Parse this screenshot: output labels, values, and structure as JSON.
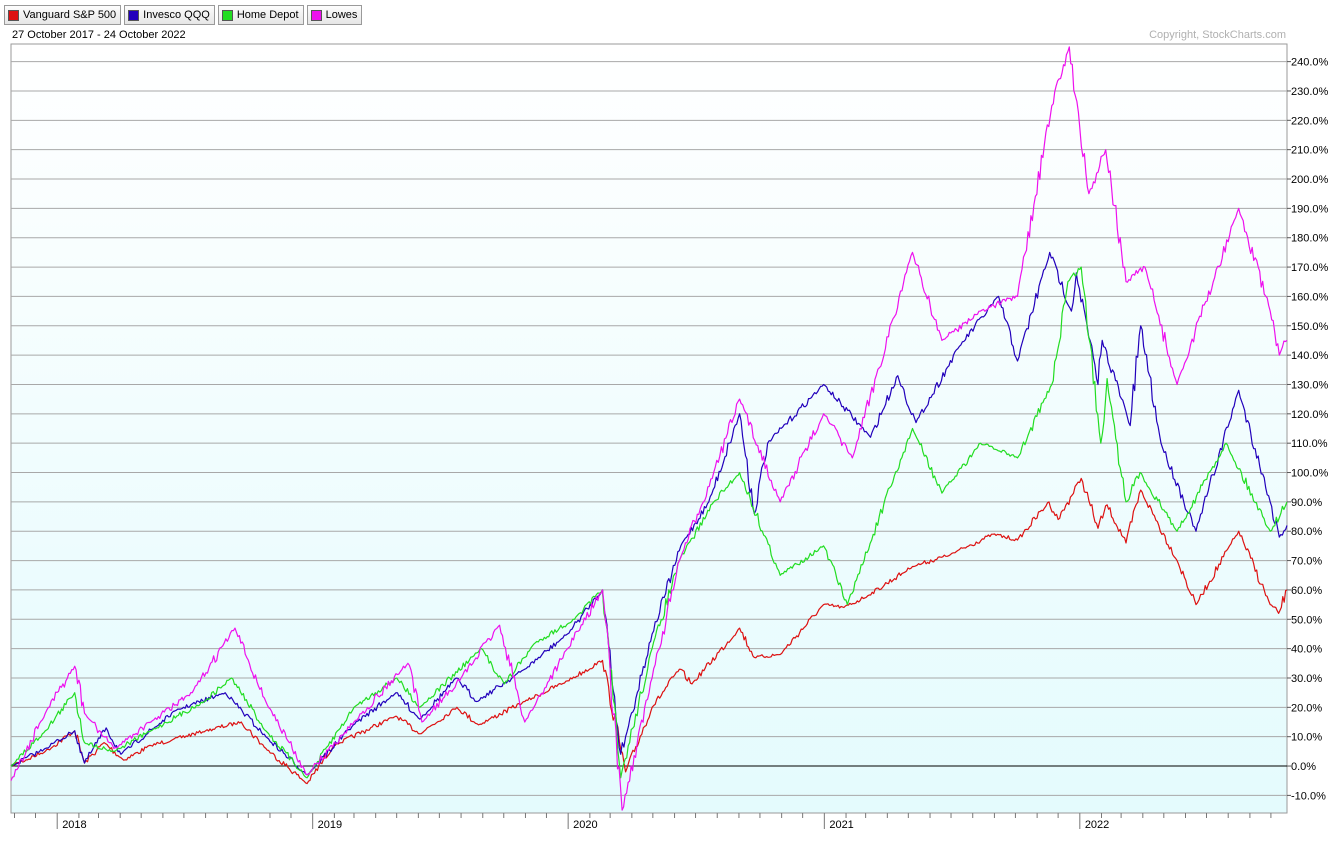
{
  "legend": [
    {
      "label": "Vanguard S&P 500",
      "color": "#dd1111"
    },
    {
      "label": "Invesco QQQ",
      "color": "#2200bb"
    },
    {
      "label": "Home Depot",
      "color": "#22dd22"
    },
    {
      "label": "Lowes",
      "color": "#ee11ee"
    }
  ],
  "range_label": "27 October 2017 - 24 October 2022",
  "copyright": "Copyright, StockCharts.com",
  "chart_data": {
    "type": "line",
    "x_range": [
      "2017-10-27",
      "2022-10-24"
    ],
    "x_tick_labels": [
      {
        "label": "2018",
        "date": "2018-01-01"
      },
      {
        "label": "2019",
        "date": "2019-01-01"
      },
      {
        "label": "2020",
        "date": "2020-01-01"
      },
      {
        "label": "2021",
        "date": "2021-01-01"
      },
      {
        "label": "2022",
        "date": "2022-01-01"
      }
    ],
    "y_unit": "percent change",
    "ylim": [
      -16,
      246
    ],
    "y_ticks": [
      -10,
      0,
      10,
      20,
      30,
      40,
      50,
      60,
      70,
      80,
      90,
      100,
      110,
      120,
      130,
      140,
      150,
      160,
      170,
      180,
      190,
      200,
      210,
      220,
      230,
      240
    ],
    "y_tick_labels": [
      "-10.0%",
      "0.0%",
      "10.0%",
      "20.0%",
      "30.0%",
      "40.0%",
      "50.0%",
      "60.0%",
      "70.0%",
      "80.0%",
      "90.0%",
      "100.0%",
      "110.0%",
      "120.0%",
      "130.0%",
      "140.0%",
      "150.0%",
      "160.0%",
      "170.0%",
      "180.0%",
      "190.0%",
      "200.0%",
      "210.0%",
      "220.0%",
      "230.0%",
      "240.0%"
    ],
    "grid": true,
    "legend_position": "top-left",
    "series": [
      {
        "name": "Vanguard S&P 500",
        "color": "#dd1111",
        "points": [
          [
            "2017-10-27",
            0
          ],
          [
            "2017-12-15",
            5
          ],
          [
            "2018-01-26",
            12
          ],
          [
            "2018-02-09",
            1
          ],
          [
            "2018-03-09",
            8
          ],
          [
            "2018-04-06",
            2
          ],
          [
            "2018-05-15",
            7
          ],
          [
            "2018-06-15",
            9
          ],
          [
            "2018-08-01",
            12
          ],
          [
            "2018-09-21",
            15
          ],
          [
            "2018-10-26",
            6
          ],
          [
            "2018-12-24",
            -6
          ],
          [
            "2019-01-31",
            7
          ],
          [
            "2019-04-30",
            17
          ],
          [
            "2019-06-03",
            11
          ],
          [
            "2019-07-26",
            20
          ],
          [
            "2019-08-26",
            14
          ],
          [
            "2019-10-31",
            22
          ],
          [
            "2019-12-31",
            29
          ],
          [
            "2020-02-19",
            36
          ],
          [
            "2020-03-23",
            -2
          ],
          [
            "2020-04-30",
            20
          ],
          [
            "2020-06-08",
            33
          ],
          [
            "2020-06-26",
            28
          ],
          [
            "2020-09-02",
            47
          ],
          [
            "2020-09-23",
            37
          ],
          [
            "2020-10-30",
            38
          ],
          [
            "2020-12-31",
            55
          ],
          [
            "2021-01-29",
            54
          ],
          [
            "2021-03-04",
            58
          ],
          [
            "2021-05-07",
            68
          ],
          [
            "2021-06-30",
            72
          ],
          [
            "2021-08-30",
            79
          ],
          [
            "2021-10-04",
            77
          ],
          [
            "2021-11-18",
            90
          ],
          [
            "2021-12-01",
            84
          ],
          [
            "2022-01-03",
            98
          ],
          [
            "2022-01-27",
            81
          ],
          [
            "2022-02-09",
            89
          ],
          [
            "2022-03-08",
            76
          ],
          [
            "2022-03-29",
            94
          ],
          [
            "2022-05-20",
            70
          ],
          [
            "2022-06-16",
            55
          ],
          [
            "2022-08-16",
            80
          ],
          [
            "2022-09-30",
            55
          ],
          [
            "2022-10-12",
            52
          ],
          [
            "2022-10-24",
            60
          ]
        ]
      },
      {
        "name": "Invesco QQQ",
        "color": "#2200bb",
        "points": [
          [
            "2017-10-27",
            0
          ],
          [
            "2017-12-15",
            6
          ],
          [
            "2018-01-26",
            12
          ],
          [
            "2018-02-09",
            1
          ],
          [
            "2018-03-12",
            13
          ],
          [
            "2018-04-02",
            4
          ],
          [
            "2018-06-20",
            19
          ],
          [
            "2018-08-29",
            25
          ],
          [
            "2018-10-26",
            10
          ],
          [
            "2018-12-24",
            -3
          ],
          [
            "2019-02-28",
            14
          ],
          [
            "2019-04-30",
            25
          ],
          [
            "2019-06-03",
            16
          ],
          [
            "2019-07-26",
            30
          ],
          [
            "2019-08-23",
            22
          ],
          [
            "2019-10-31",
            33
          ],
          [
            "2019-12-31",
            45
          ],
          [
            "2020-02-19",
            60
          ],
          [
            "2020-03-16",
            4
          ],
          [
            "2020-03-23",
            10
          ],
          [
            "2020-04-30",
            45
          ],
          [
            "2020-06-10",
            75
          ],
          [
            "2020-07-20",
            90
          ],
          [
            "2020-09-02",
            120
          ],
          [
            "2020-09-23",
            86
          ],
          [
            "2020-10-12",
            110
          ],
          [
            "2020-12-31",
            130
          ],
          [
            "2021-03-08",
            112
          ],
          [
            "2021-04-16",
            133
          ],
          [
            "2021-05-12",
            117
          ],
          [
            "2021-07-13",
            143
          ],
          [
            "2021-09-07",
            160
          ],
          [
            "2021-10-04",
            138
          ],
          [
            "2021-11-19",
            175
          ],
          [
            "2021-12-20",
            155
          ],
          [
            "2021-12-27",
            168
          ],
          [
            "2022-01-27",
            130
          ],
          [
            "2022-02-02",
            145
          ],
          [
            "2022-03-14",
            116
          ],
          [
            "2022-03-29",
            150
          ],
          [
            "2022-04-27",
            110
          ],
          [
            "2022-06-16",
            80
          ],
          [
            "2022-08-16",
            128
          ],
          [
            "2022-09-30",
            90
          ],
          [
            "2022-10-13",
            78
          ],
          [
            "2022-10-24",
            82
          ]
        ]
      },
      {
        "name": "Home Depot",
        "color": "#22dd22",
        "points": [
          [
            "2017-10-27",
            0
          ],
          [
            "2017-12-15",
            12
          ],
          [
            "2018-01-26",
            25
          ],
          [
            "2018-02-09",
            8
          ],
          [
            "2018-03-23",
            5
          ],
          [
            "2018-05-15",
            12
          ],
          [
            "2018-07-30",
            22
          ],
          [
            "2018-09-07",
            30
          ],
          [
            "2018-10-26",
            12
          ],
          [
            "2018-12-24",
            -4
          ],
          [
            "2019-03-01",
            20
          ],
          [
            "2019-05-01",
            30
          ],
          [
            "2019-06-03",
            20
          ],
          [
            "2019-08-30",
            40
          ],
          [
            "2019-10-02",
            28
          ],
          [
            "2019-11-15",
            42
          ],
          [
            "2020-01-10",
            50
          ],
          [
            "2020-02-19",
            60
          ],
          [
            "2020-03-16",
            -4
          ],
          [
            "2020-04-30",
            40
          ],
          [
            "2020-06-08",
            70
          ],
          [
            "2020-07-27",
            90
          ],
          [
            "2020-09-02",
            100
          ],
          [
            "2020-10-30",
            65
          ],
          [
            "2020-12-31",
            75
          ],
          [
            "2021-02-03",
            55
          ],
          [
            "2021-05-07",
            115
          ],
          [
            "2021-06-18",
            93
          ],
          [
            "2021-08-12",
            110
          ],
          [
            "2021-10-04",
            105
          ],
          [
            "2021-11-22",
            130
          ],
          [
            "2021-12-15",
            165
          ],
          [
            "2022-01-03",
            170
          ],
          [
            "2022-01-31",
            110
          ],
          [
            "2022-02-09",
            132
          ],
          [
            "2022-03-08",
            90
          ],
          [
            "2022-03-28",
            100
          ],
          [
            "2022-05-20",
            80
          ],
          [
            "2022-07-29",
            110
          ],
          [
            "2022-09-30",
            80
          ],
          [
            "2022-10-24",
            90
          ]
        ]
      },
      {
        "name": "Lowes",
        "color": "#ee11ee",
        "points": [
          [
            "2017-10-27",
            -5
          ],
          [
            "2017-12-15",
            18
          ],
          [
            "2018-01-26",
            34
          ],
          [
            "2018-02-09",
            18
          ],
          [
            "2018-03-23",
            6
          ],
          [
            "2018-05-15",
            15
          ],
          [
            "2018-07-13",
            25
          ],
          [
            "2018-09-12",
            47
          ],
          [
            "2018-10-26",
            22
          ],
          [
            "2018-12-24",
            -3
          ],
          [
            "2019-03-01",
            15
          ],
          [
            "2019-05-17",
            35
          ],
          [
            "2019-06-06",
            15
          ],
          [
            "2019-08-01",
            30
          ],
          [
            "2019-09-25",
            48
          ],
          [
            "2019-10-31",
            15
          ],
          [
            "2019-12-31",
            40
          ],
          [
            "2020-02-19",
            60
          ],
          [
            "2020-03-18",
            -15
          ],
          [
            "2020-04-30",
            30
          ],
          [
            "2020-06-08",
            70
          ],
          [
            "2020-07-27",
            100
          ],
          [
            "2020-09-02",
            125
          ],
          [
            "2020-10-30",
            90
          ],
          [
            "2020-12-31",
            120
          ],
          [
            "2021-02-10",
            105
          ],
          [
            "2021-05-07",
            175
          ],
          [
            "2021-06-18",
            145
          ],
          [
            "2021-08-12",
            155
          ],
          [
            "2021-10-04",
            160
          ],
          [
            "2021-11-22",
            225
          ],
          [
            "2021-12-17",
            245
          ],
          [
            "2022-01-14",
            195
          ],
          [
            "2022-02-07",
            210
          ],
          [
            "2022-03-08",
            165
          ],
          [
            "2022-04-04",
            170
          ],
          [
            "2022-05-20",
            130
          ],
          [
            "2022-08-16",
            190
          ],
          [
            "2022-09-30",
            155
          ],
          [
            "2022-10-13",
            140
          ],
          [
            "2022-10-24",
            145
          ]
        ]
      }
    ]
  }
}
